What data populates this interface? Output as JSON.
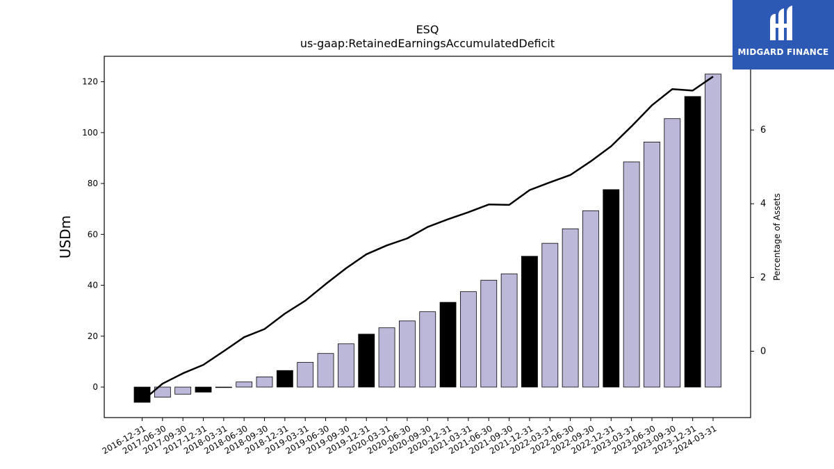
{
  "brand": {
    "name": "MIDGARD FINANCE",
    "bg_color": "#2b59b3"
  },
  "chart_data": {
    "type": "bar",
    "title": "ESQ",
    "subtitle": "us-gaap:RetainedEarningsAccumulatedDeficit",
    "ylabel": "USDm",
    "y2label": "Percentage of Assets",
    "ylim": [
      -12,
      130
    ],
    "y2lim": [
      -1.8,
      8.0
    ],
    "yticks": [
      0,
      20,
      40,
      60,
      80,
      100,
      120
    ],
    "y2ticks": [
      0,
      2,
      4,
      6
    ],
    "bar_color_quarter": "#bcb8da",
    "bar_color_year_end": "#000000",
    "categories": [
      "2016-12-31",
      "2017-06-30",
      "2017-09-30",
      "2017-12-31",
      "2018-03-31",
      "2018-06-30",
      "2018-09-30",
      "2018-12-31",
      "2019-03-31",
      "2019-06-30",
      "2019-09-30",
      "2019-12-31",
      "2020-03-31",
      "2020-06-30",
      "2020-09-30",
      "2020-12-31",
      "2021-03-31",
      "2021-06-30",
      "2021-09-30",
      "2021-12-31",
      "2022-03-31",
      "2022-06-30",
      "2022-09-30",
      "2022-12-31",
      "2023-03-31",
      "2023-06-30",
      "2023-09-30",
      "2023-12-31",
      "2024-03-31"
    ],
    "series": [
      {
        "name": "",
        "axis": "left",
        "type": "bar",
        "values": [
          -6.0,
          -4.0,
          -2.8,
          -2.0,
          -0.2,
          2.0,
          4.0,
          6.5,
          9.7,
          13.2,
          17.0,
          20.8,
          23.3,
          26.0,
          29.6,
          33.3,
          37.5,
          42.0,
          44.5,
          51.4,
          56.5,
          62.2,
          69.3,
          77.6,
          88.5,
          96.3,
          105.5,
          114.2,
          123.0
        ]
      },
      {
        "name": "",
        "axis": "right",
        "type": "line",
        "values": [
          -1.35,
          -0.88,
          -0.6,
          -0.37,
          0.0,
          0.38,
          0.6,
          1.02,
          1.37,
          1.82,
          2.25,
          2.63,
          2.87,
          3.06,
          3.37,
          3.58,
          3.77,
          3.98,
          3.97,
          4.37,
          4.58,
          4.78,
          5.15,
          5.56,
          6.1,
          6.67,
          7.11,
          7.07,
          7.45
        ]
      }
    ]
  }
}
